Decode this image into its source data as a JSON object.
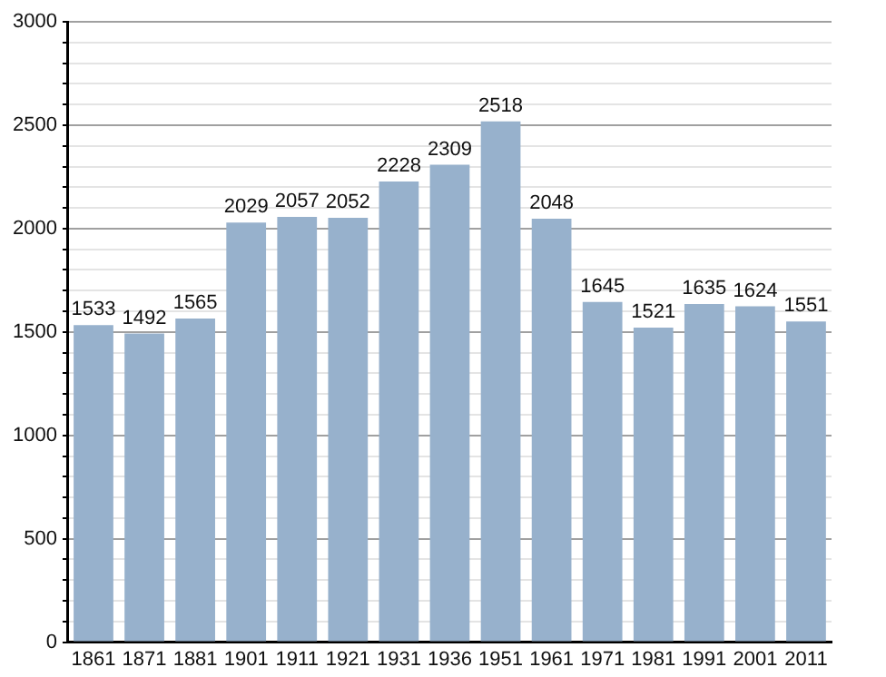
{
  "chart_data": {
    "type": "bar",
    "categories": [
      "1861",
      "1871",
      "1881",
      "1901",
      "1911",
      "1921",
      "1931",
      "1936",
      "1951",
      "1961",
      "1971",
      "1981",
      "1991",
      "2001",
      "2011"
    ],
    "values": [
      1533,
      1492,
      1565,
      2029,
      2057,
      2052,
      2228,
      2309,
      2518,
      2048,
      1645,
      1521,
      1635,
      1624,
      1551
    ],
    "color": "#97b1cc",
    "ylim": [
      0,
      3000
    ],
    "yticks": [
      0,
      {
        "value": 100,
        "label": null
      },
      {
        "value": 200,
        "label": null
      },
      {
        "value": 300,
        "label": null
      },
      {
        "value": 400,
        "label": null
      },
      500,
      {
        "value": 600,
        "label": null
      },
      {
        "value": 700,
        "label": null
      },
      {
        "value": 800,
        "label": null
      },
      {
        "value": 900,
        "label": null
      },
      1000,
      {
        "value": 1100,
        "label": null
      },
      {
        "value": 1200,
        "label": null
      },
      {
        "value": 1300,
        "label": null
      },
      {
        "value": 1400,
        "label": null
      },
      1500,
      {
        "value": 1600,
        "label": null
      },
      {
        "value": 1700,
        "label": null
      },
      {
        "value": 1800,
        "label": null
      },
      {
        "value": 1900,
        "label": null
      },
      2000,
      {
        "value": 2100,
        "label": null
      },
      {
        "value": 2200,
        "label": null
      },
      {
        "value": 2300,
        "label": null
      },
      {
        "value": 2400,
        "label": null
      },
      2500,
      {
        "value": 2600,
        "label": null
      },
      {
        "value": 2700,
        "label": null
      },
      {
        "value": 2800,
        "label": null
      },
      {
        "value": 2900,
        "label": null
      },
      3000
    ],
    "grid": "y",
    "data_labels": true,
    "legend": false
  }
}
